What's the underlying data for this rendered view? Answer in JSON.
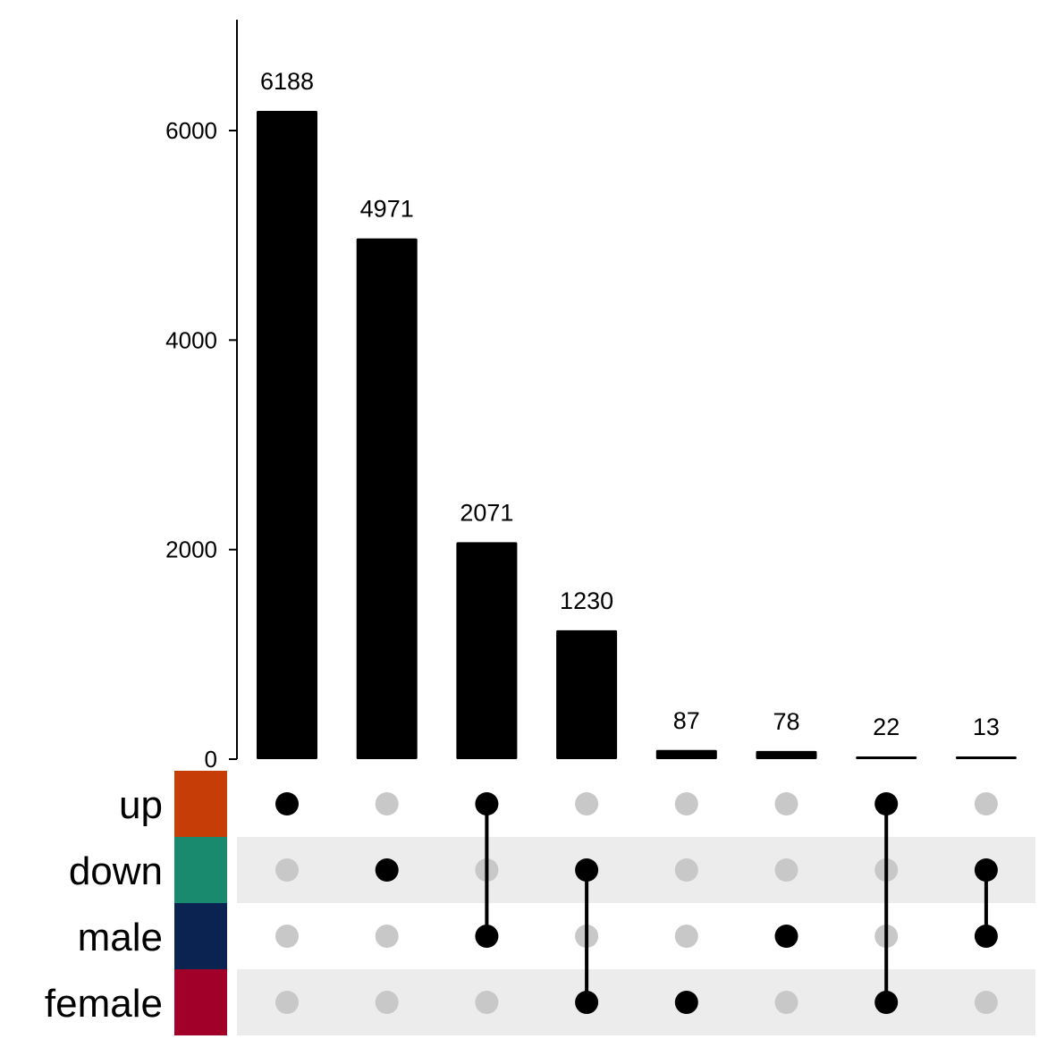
{
  "chart_data": {
    "type": "bar",
    "subtype": "upset",
    "title": "",
    "xlabel": "",
    "ylabel": "",
    "ylim": [
      0,
      7000
    ],
    "yticks": [
      0,
      2000,
      4000,
      6000
    ],
    "grid": false,
    "sets": [
      {
        "name": "up",
        "color": "#C63D07"
      },
      {
        "name": "down",
        "color": "#1A8A6E"
      },
      {
        "name": "male",
        "color": "#0A2350"
      },
      {
        "name": "female",
        "color": "#A10028"
      }
    ],
    "intersections": [
      {
        "sets": [
          "up"
        ],
        "value": 6188,
        "label": "6188"
      },
      {
        "sets": [
          "down"
        ],
        "value": 4971,
        "label": "4971"
      },
      {
        "sets": [
          "up",
          "male"
        ],
        "value": 2071,
        "label": "2071"
      },
      {
        "sets": [
          "down",
          "female"
        ],
        "value": 1230,
        "label": "1230"
      },
      {
        "sets": [
          "female"
        ],
        "value": 87,
        "label": "87"
      },
      {
        "sets": [
          "male"
        ],
        "value": 78,
        "label": "78"
      },
      {
        "sets": [
          "up",
          "female"
        ],
        "value": 22,
        "label": "22"
      },
      {
        "sets": [
          "down",
          "male"
        ],
        "value": 13,
        "label": "13"
      }
    ]
  },
  "colors": {
    "bar": "#000000",
    "dot_active": "#000000",
    "dot_inactive": "#C8C8C8",
    "stripe": "#ECECEC"
  }
}
